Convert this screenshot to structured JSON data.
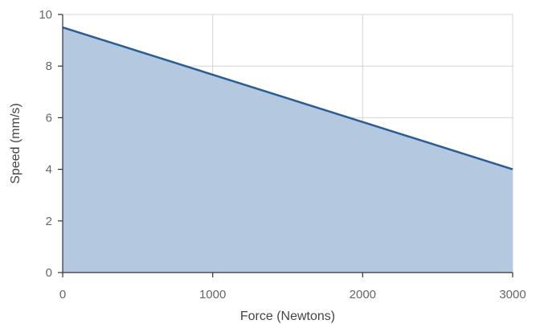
{
  "chart_data": {
    "type": "area",
    "title": "",
    "xlabel": "Force (Newtons)",
    "ylabel": "Speed (mm/s)",
    "xlim": [
      0,
      3000
    ],
    "ylim": [
      0,
      10
    ],
    "x_ticks": [
      0,
      1000,
      2000,
      3000
    ],
    "y_ticks": [
      0,
      2,
      4,
      6,
      8,
      10
    ],
    "x_tick_labels": [
      "0",
      "1000",
      "2000",
      "3000"
    ],
    "y_tick_labels": [
      "0",
      "2",
      "4",
      "6",
      "8",
      "10"
    ],
    "grid": true,
    "legend": "none",
    "series": [
      {
        "x": [
          0,
          3000
        ],
        "y": [
          9.5,
          4.0
        ]
      }
    ],
    "colors": {
      "line": "#2a5d96",
      "fill": "#b4c9df",
      "grid": "#d4d4d4",
      "axis": "#333333",
      "text": "#666666"
    }
  }
}
